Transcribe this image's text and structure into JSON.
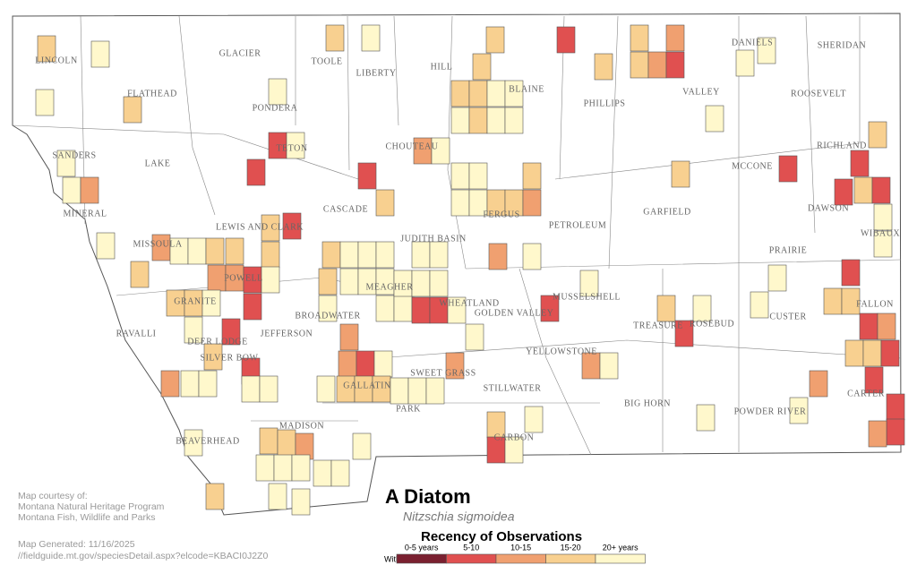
{
  "counties": [
    "LINCOLN",
    "GLACIER",
    "TOOLE",
    "LIBERTY",
    "HILL",
    "BLAINE",
    "PHILLIPS",
    "VALLEY",
    "DANIELS",
    "SHERIDAN",
    "ROOSEVELT",
    "FLATHEAD",
    "PONDERA",
    "TETON",
    "CHOUTEAU",
    "SANDERS",
    "LAKE",
    "MCCONE",
    "RICHLAND",
    "MINERAL",
    "LEWIS AND CLARK",
    "CASCADE",
    "JUDITH BASIN",
    "FERGUS",
    "PETROLEUM",
    "GARFIELD",
    "DAWSON",
    "WIBAUX",
    "PRAIRIE",
    "MISSOULA",
    "POWELL",
    "MEAGHER",
    "WHEATLAND",
    "GOLDEN VALLEY",
    "MUSSELSHELL",
    "GRANITE",
    "BROADWATER",
    "CUSTER",
    "FALLON",
    "TREASURE",
    "ROSEBUD",
    "RAVALLI",
    "DEER LODGE",
    "JEFFERSON",
    "YELLOWSTONE",
    "SILVER BOW",
    "SWEET GRASS",
    "STILLWATER",
    "GALLATIN",
    "CARTER",
    "PARK",
    "BIG HORN",
    "POWDER RIVER",
    "MADISON",
    "BEAVERHEAD",
    "CARBON"
  ],
  "title": "A Diatom",
  "scientific_name": "Nitzschia sigmoidea",
  "legend": {
    "title": "Recency of Observations",
    "prefix": "Within",
    "items": [
      "0-5 years",
      "5-10",
      "10-15",
      "15-20",
      "20+ years"
    ]
  },
  "credits": [
    "Map courtesy of:",
    "Montana Natural Heritage Program",
    "Montana Fish, Wildlife and Parks"
  ],
  "generated": "Map Generated: 11/16/2025",
  "url": "//fieldguide.mt.gov/speciesDetail.aspx?elcode=KBACI0J2Z0"
}
